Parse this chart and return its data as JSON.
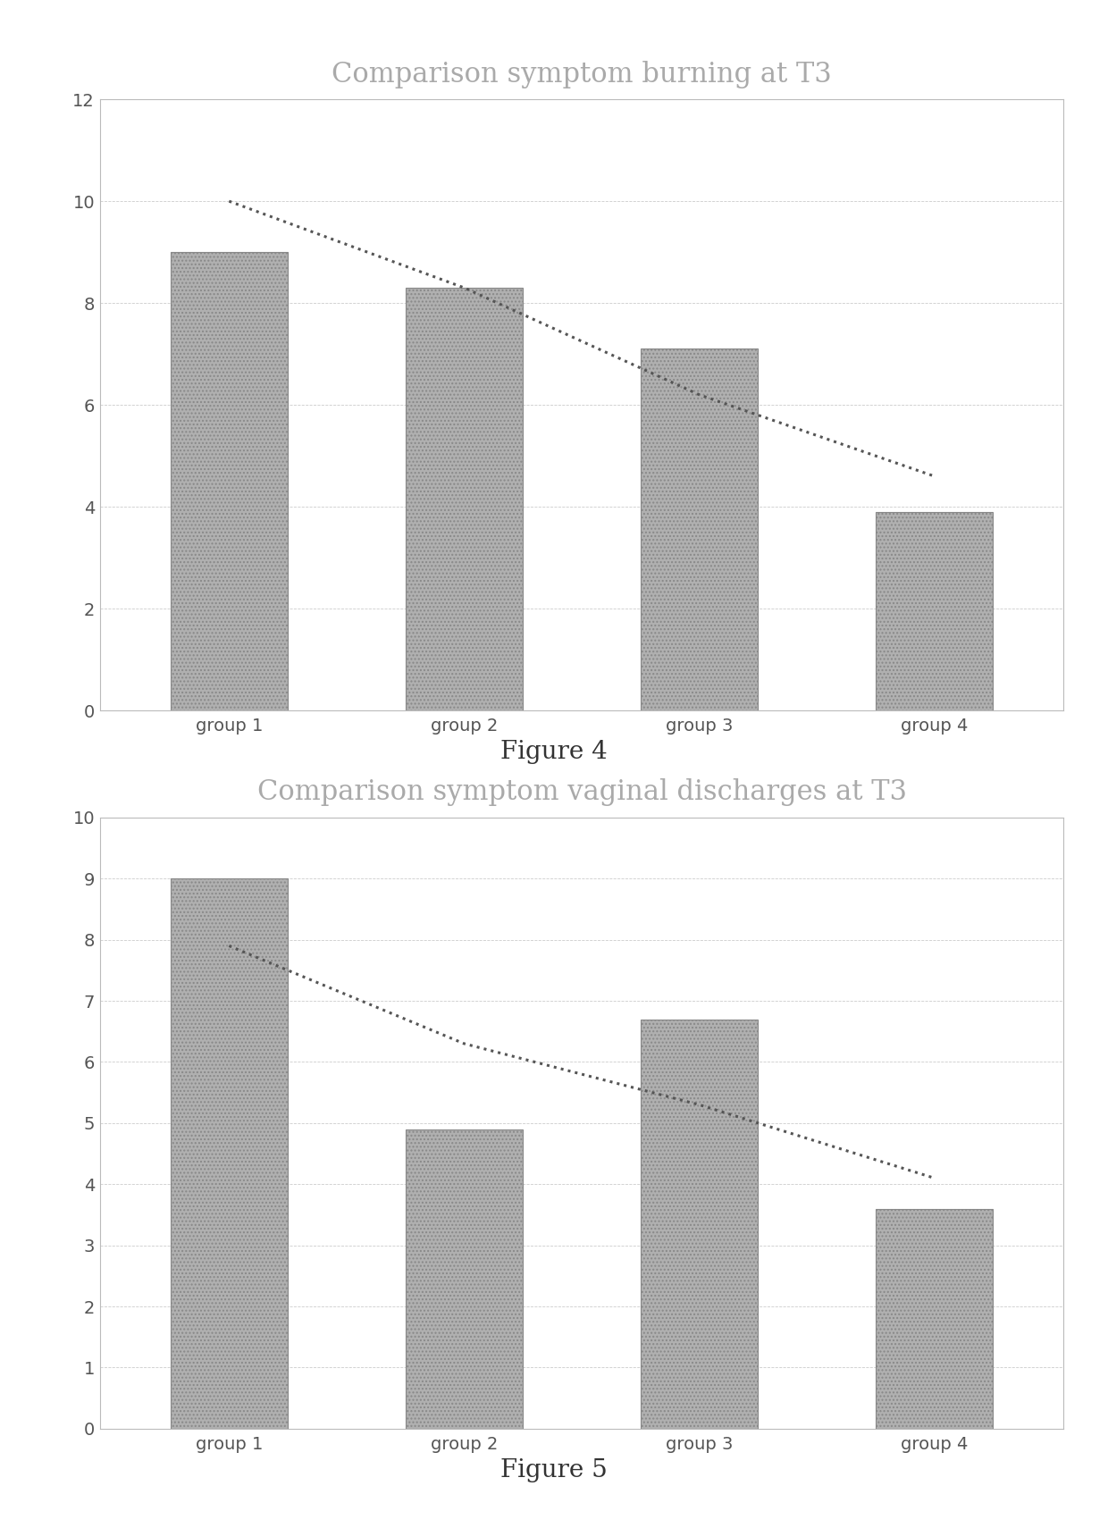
{
  "chart1": {
    "title": "Comparison symptom burning at T3",
    "categories": [
      "group 1",
      "group 2",
      "group 3",
      "group 4"
    ],
    "bar_values": [
      9.0,
      8.3,
      7.1,
      3.9
    ],
    "dotted_line_x": [
      0,
      1,
      2,
      3
    ],
    "dotted_line_y": [
      10.0,
      8.3,
      6.2,
      4.6
    ],
    "ylim": [
      0,
      12
    ],
    "yticks": [
      0,
      2,
      4,
      6,
      8,
      10,
      12
    ],
    "figure_label": "Figure 4"
  },
  "chart2": {
    "title": "Comparison symptom vaginal discharges at T3",
    "categories": [
      "group 1",
      "group 2",
      "group 3",
      "group 4"
    ],
    "bar_values": [
      9.0,
      4.9,
      6.7,
      3.6
    ],
    "dotted_line_x": [
      0,
      1,
      2,
      3
    ],
    "dotted_line_y": [
      7.9,
      6.3,
      5.3,
      4.1
    ],
    "ylim": [
      0,
      10
    ],
    "yticks": [
      0,
      1,
      2,
      3,
      4,
      5,
      6,
      7,
      8,
      9,
      10
    ],
    "figure_label": "Figure 5"
  },
  "bar_color": "#b0b0b0",
  "bar_edgecolor": "#888888",
  "bar_hatch": "....",
  "dotted_color": "#555555",
  "background_color": "#ffffff",
  "page_color": "#ffffff",
  "box_edgecolor": "#bbbbbb",
  "title_fontsize": 22,
  "tick_fontsize": 14,
  "label_fontsize": 14,
  "figure_label_fontsize": 20,
  "bar_width": 0.5
}
